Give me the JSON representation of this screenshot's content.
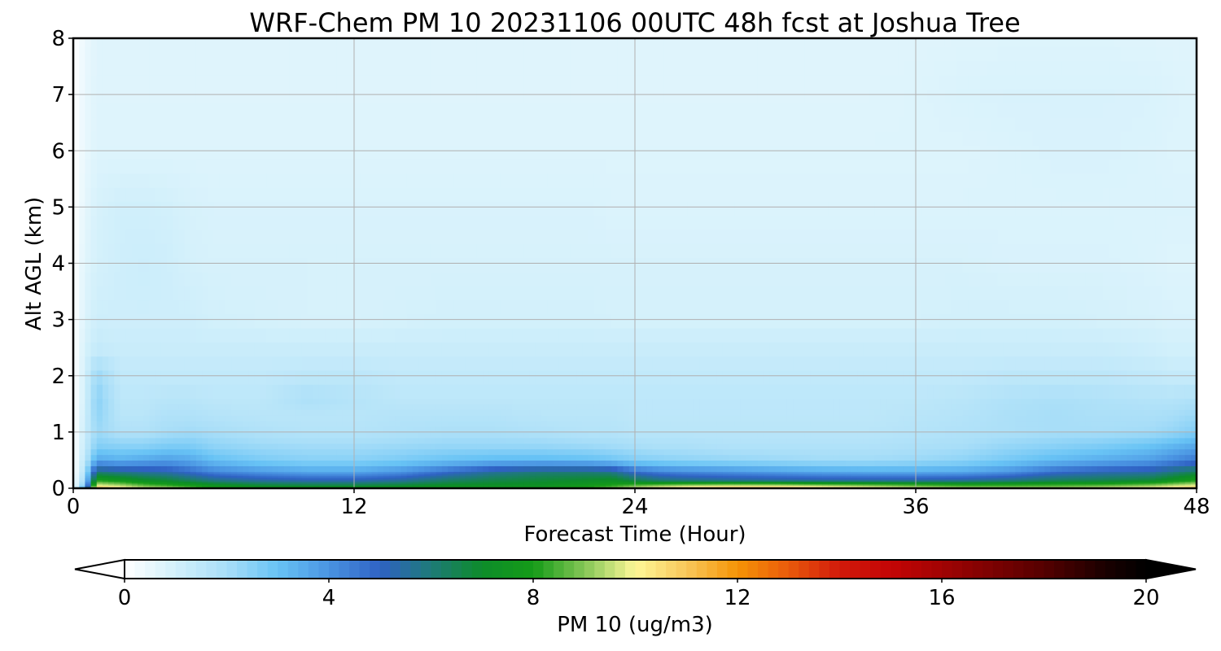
{
  "chart_data": {
    "type": "heatmap",
    "title": "WRF-Chem PM 10  20231106 00UTC 48h fcst at Joshua Tree",
    "xlabel": "Forecast Time (Hour)",
    "ylabel": "Alt AGL (km)",
    "xlim": [
      0,
      48
    ],
    "ylim": [
      0,
      8
    ],
    "x_ticks": [
      0,
      12,
      24,
      36,
      48
    ],
    "y_ticks": [
      0,
      1,
      2,
      3,
      4,
      5,
      6,
      7,
      8
    ],
    "grid": true,
    "colorbar": {
      "label": "PM 10  (ug/m3)",
      "range": [
        0,
        20
      ],
      "ticks": [
        0,
        4,
        8,
        12,
        16,
        20
      ],
      "extend": "both",
      "orientation": "horizontal",
      "stops": [
        {
          "value": 0,
          "color": "#ffffff"
        },
        {
          "value": 1,
          "color": "#d2f0fb"
        },
        {
          "value": 2,
          "color": "#a8def8"
        },
        {
          "value": 3,
          "color": "#68c3f5"
        },
        {
          "value": 4,
          "color": "#4a94e2"
        },
        {
          "value": 5,
          "color": "#2f62c4"
        },
        {
          "value": 6,
          "color": "#1e7a78"
        },
        {
          "value": 7,
          "color": "#0d8c2a"
        },
        {
          "value": 8,
          "color": "#159b18"
        },
        {
          "value": 9,
          "color": "#84c656"
        },
        {
          "value": 10,
          "color": "#fdf797"
        },
        {
          "value": 11,
          "color": "#f8c75a"
        },
        {
          "value": 12,
          "color": "#f69406"
        },
        {
          "value": 13,
          "color": "#ea5a0b"
        },
        {
          "value": 14,
          "color": "#d11a0b"
        },
        {
          "value": 15,
          "color": "#c40505"
        },
        {
          "value": 16,
          "color": "#a10303"
        },
        {
          "value": 18,
          "color": "#550000"
        },
        {
          "value": 19.2,
          "color": "#1a0000"
        },
        {
          "value": 20,
          "color": "#000000"
        }
      ]
    },
    "hours": [
      0,
      0.5,
      1,
      2,
      3,
      4,
      5,
      6,
      8,
      10,
      12,
      14,
      16,
      18,
      20,
      22,
      23,
      24,
      25,
      26,
      28,
      30,
      32,
      34,
      36,
      38,
      40,
      42,
      44,
      46,
      47,
      48
    ],
    "altitudes_km": [
      0,
      0.05,
      0.15,
      0.3,
      0.5,
      0.75,
      1.0,
      1.3,
      1.6,
      2.0,
      2.5,
      3.0,
      4.0,
      5.0,
      6.0,
      7.0,
      8.0
    ],
    "pm10": [
      [
        0.2,
        5,
        12,
        11,
        10,
        10,
        9,
        8.5,
        8,
        8,
        8,
        8,
        8,
        8,
        8,
        8.5,
        9,
        10,
        10.5,
        11,
        11.5,
        11.5,
        11,
        10.5,
        10,
        9.5,
        9.5,
        9.5,
        10,
        10.5,
        11,
        11.5
      ],
      [
        0.1,
        3,
        10,
        9.5,
        8.8,
        8.4,
        8,
        7.5,
        7,
        6.8,
        6.8,
        7,
        7.2,
        7.2,
        7.3,
        7.8,
        8.2,
        8.8,
        9.2,
        9.5,
        9.8,
        9.8,
        9.5,
        9.2,
        8.8,
        8.5,
        8.5,
        8.6,
        8.8,
        9.2,
        9.6,
        10
      ],
      [
        0.1,
        2.2,
        8,
        7.6,
        7.1,
        6.8,
        6.3,
        5.8,
        5.4,
        5.2,
        5.2,
        5.5,
        6.2,
        6.6,
        6.8,
        7,
        7.2,
        6.5,
        6,
        5.8,
        5.6,
        5.5,
        5.4,
        5.4,
        5.4,
        5.5,
        5.8,
        6.3,
        6.5,
        6.8,
        7.4,
        8
      ],
      [
        0,
        1.8,
        6,
        5.7,
        5.5,
        5.3,
        4.8,
        4.3,
        3.9,
        3.6,
        3.6,
        4,
        4.8,
        5.6,
        6,
        6,
        5.8,
        4.8,
        4.4,
        4.2,
        4,
        3.8,
        3.6,
        3.5,
        3.5,
        3.6,
        4,
        4.8,
        5.2,
        5.4,
        5.9,
        6.4
      ],
      [
        0,
        1.5,
        3.6,
        3.4,
        3.6,
        3.8,
        3.6,
        3.1,
        2.7,
        2.5,
        2.5,
        2.7,
        3,
        3.2,
        3.2,
        3.1,
        2.9,
        2.6,
        2.5,
        2.4,
        2.3,
        2.2,
        2.1,
        2.1,
        2.2,
        2.4,
        2.8,
        3.2,
        3.5,
        3.8,
        4.2,
        4.6
      ],
      [
        0,
        1.3,
        2.6,
        2.5,
        2.5,
        2.7,
        2.7,
        2.4,
        2.2,
        2.1,
        2.1,
        2.2,
        2.3,
        2.3,
        2.3,
        2.2,
        2.1,
        2,
        1.9,
        1.9,
        1.8,
        1.8,
        1.8,
        1.8,
        1.9,
        2,
        2.3,
        2.5,
        2.7,
        3,
        3.3,
        3.6
      ],
      [
        0,
        1.2,
        2.2,
        1.8,
        1.8,
        2,
        2.1,
        2,
        1.8,
        1.7,
        1.7,
        1.8,
        1.9,
        1.9,
        1.8,
        1.7,
        1.7,
        1.6,
        1.6,
        1.6,
        1.6,
        1.6,
        1.6,
        1.6,
        1.7,
        1.8,
        1.9,
        2,
        2,
        2.1,
        2.3,
        2.6
      ],
      [
        0,
        1.1,
        2.4,
        1.6,
        1.6,
        1.8,
        1.8,
        1.7,
        1.6,
        1.6,
        1.6,
        1.7,
        1.7,
        1.7,
        1.6,
        1.6,
        1.6,
        1.5,
        1.5,
        1.5,
        1.5,
        1.5,
        1.5,
        1.5,
        1.6,
        1.7,
        1.9,
        2,
        1.9,
        1.9,
        2,
        2.2
      ],
      [
        0,
        1,
        2.5,
        1.5,
        1.5,
        1.6,
        1.6,
        1.5,
        1.5,
        1.9,
        1.7,
        1.5,
        1.5,
        1.5,
        1.5,
        1.5,
        1.5,
        1.5,
        1.5,
        1.5,
        1.5,
        1.5,
        1.5,
        1.5,
        1.5,
        1.6,
        1.8,
        1.9,
        1.8,
        1.7,
        1.7,
        1.8
      ],
      [
        0,
        1,
        2.2,
        1.4,
        1.4,
        1.4,
        1.4,
        1.4,
        1.4,
        1.5,
        1.5,
        1.4,
        1.4,
        1.4,
        1.4,
        1.4,
        1.4,
        1.4,
        1.4,
        1.4,
        1.4,
        1.4,
        1.4,
        1.4,
        1.4,
        1.4,
        1.5,
        1.5,
        1.5,
        1.4,
        1.3,
        1.3
      ],
      [
        0,
        0.9,
        1.3,
        1.2,
        1.2,
        1.2,
        1.2,
        1.2,
        1.2,
        1.2,
        1.2,
        1.2,
        1.2,
        1.2,
        1.2,
        1.2,
        1.2,
        1.2,
        1.2,
        1.2,
        1.2,
        1.2,
        1.2,
        1.2,
        1.2,
        1.2,
        1.2,
        1.2,
        1.2,
        1.1,
        1.0,
        1.0
      ],
      [
        0,
        0.8,
        1.1,
        1.1,
        1.1,
        1.1,
        1.1,
        1.0,
        0.95,
        0.9,
        0.9,
        0.95,
        1.0,
        1.0,
        1.0,
        1.0,
        0.95,
        0.95,
        0.95,
        0.95,
        0.95,
        0.95,
        0.95,
        0.95,
        0.95,
        1.0,
        1.0,
        1.0,
        0.95,
        0.9,
        0.85,
        0.85
      ],
      [
        0,
        0.7,
        0.95,
        1.1,
        1.15,
        1.1,
        0.95,
        0.9,
        0.9,
        0.9,
        0.9,
        0.9,
        0.9,
        0.9,
        0.9,
        0.9,
        0.9,
        0.9,
        0.9,
        0.9,
        0.9,
        0.9,
        0.9,
        0.9,
        0.9,
        0.9,
        0.85,
        0.85,
        0.85,
        0.8,
        0.75,
        0.75
      ],
      [
        0,
        0.6,
        0.9,
        1.05,
        1.05,
        1.0,
        0.9,
        0.85,
        0.85,
        0.85,
        0.85,
        0.85,
        0.85,
        0.85,
        0.85,
        0.85,
        0.8,
        0.8,
        0.8,
        0.8,
        0.8,
        0.8,
        0.8,
        0.8,
        0.8,
        0.8,
        0.8,
        0.8,
        0.8,
        0.8,
        0.8,
        0.8
      ],
      [
        0,
        0.5,
        0.75,
        0.75,
        0.75,
        0.75,
        0.75,
        0.75,
        0.75,
        0.75,
        0.75,
        0.75,
        0.75,
        0.75,
        0.75,
        0.75,
        0.75,
        0.75,
        0.75,
        0.75,
        0.75,
        0.75,
        0.75,
        0.75,
        0.75,
        0.75,
        0.8,
        0.85,
        0.85,
        0.8,
        0.75,
        0.75
      ],
      [
        0,
        0.5,
        0.72,
        0.72,
        0.72,
        0.72,
        0.72,
        0.72,
        0.72,
        0.72,
        0.72,
        0.72,
        0.72,
        0.72,
        0.72,
        0.72,
        0.72,
        0.72,
        0.72,
        0.72,
        0.72,
        0.72,
        0.72,
        0.72,
        0.75,
        0.82,
        0.86,
        0.86,
        0.86,
        0.84,
        0.78,
        0.74
      ],
      [
        0,
        0.45,
        0.7,
        0.7,
        0.7,
        0.7,
        0.7,
        0.7,
        0.7,
        0.7,
        0.7,
        0.7,
        0.7,
        0.7,
        0.7,
        0.7,
        0.7,
        0.7,
        0.7,
        0.7,
        0.7,
        0.7,
        0.7,
        0.7,
        0.7,
        0.72,
        0.74,
        0.74,
        0.74,
        0.72,
        0.7,
        0.7
      ]
    ]
  }
}
